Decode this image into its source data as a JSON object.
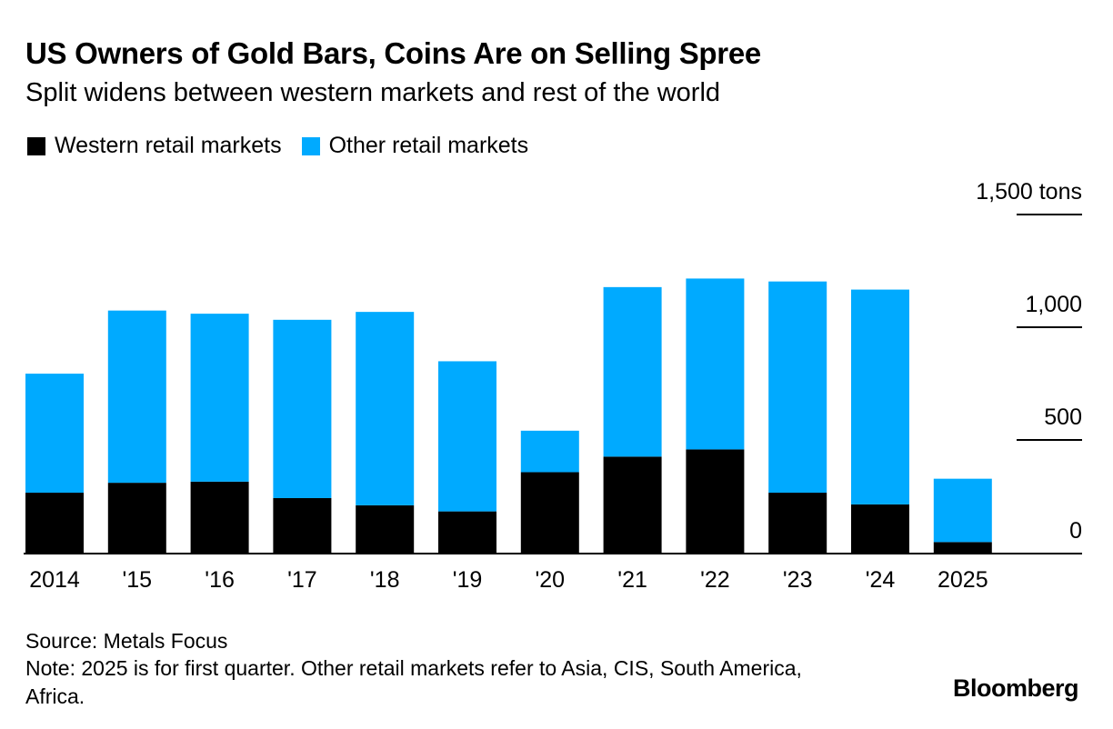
{
  "header": {
    "title": "US Owners of Gold Bars, Coins Are on Selling Spree",
    "subtitle": "Split widens between western markets and rest of the world"
  },
  "legend": {
    "western": "Western retail markets",
    "other": "Other retail markets"
  },
  "footer": {
    "source": "Source: Metals Focus",
    "note": "Note: 2025 is for first quarter. Other retail markets refer to Asia, CIS, South America, Africa.",
    "brand": "Bloomberg"
  },
  "colors": {
    "western": "#000000",
    "other": "#00aaff",
    "axis": "#000000"
  },
  "chart_data": {
    "type": "bar",
    "stacked": true,
    "title": "US Owners of Gold Bars, Coins Are on Selling Spree",
    "subtitle": "Split widens between western markets and rest of the world",
    "xlabel": "",
    "ylabel": "tons",
    "categories": [
      "2014",
      "'15",
      "'16",
      "'17",
      "'18",
      "'19",
      "'20",
      "'21",
      "'22",
      "'23",
      "'24",
      "2025"
    ],
    "series": [
      {
        "name": "Western retail markets",
        "values": [
          266,
          310,
          315,
          242,
          210,
          183,
          357,
          426,
          458,
          266,
          214,
          47
        ]
      },
      {
        "name": "Other retail markets",
        "values": [
          528,
          764,
          745,
          791,
          858,
          666,
          184,
          752,
          758,
          937,
          953,
          281
        ]
      }
    ],
    "ylim": [
      0,
      1500
    ],
    "yticks": [
      0,
      500,
      1000,
      1500
    ],
    "ytick_labels": [
      "0",
      "500",
      "1,000",
      "1,500 tons"
    ],
    "grid": false,
    "legend_position": "top-left",
    "axis_side": "right"
  }
}
